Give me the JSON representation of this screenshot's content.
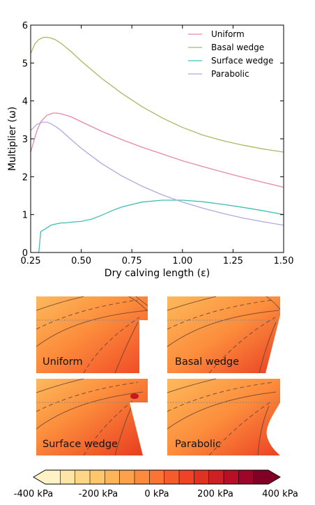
{
  "chart_data": {
    "type": "line",
    "xlabel": "Dry calving length (ε)",
    "ylabel": "Multiplier (ω)",
    "xlim": [
      0.25,
      1.5
    ],
    "ylim": [
      0,
      6
    ],
    "xticks": [
      "0.25",
      "0.50",
      "0.75",
      "1.00",
      "1.25",
      "1.50"
    ],
    "yticks": [
      "0",
      "1",
      "2",
      "3",
      "4",
      "5",
      "6"
    ],
    "legend_position": "top-right",
    "grid": false,
    "series": [
      {
        "name": "Uniform",
        "color": "#e48aa4",
        "x": [
          0.25,
          0.28,
          0.3,
          0.33,
          0.36,
          0.38,
          0.4,
          0.45,
          0.5,
          0.6,
          0.7,
          0.8,
          0.9,
          1.0,
          1.1,
          1.2,
          1.3,
          1.4,
          1.5
        ],
        "y": [
          2.65,
          3.2,
          3.45,
          3.62,
          3.68,
          3.68,
          3.66,
          3.58,
          3.45,
          3.2,
          2.98,
          2.78,
          2.6,
          2.42,
          2.27,
          2.12,
          1.98,
          1.85,
          1.72
        ]
      },
      {
        "name": "Basal wedge",
        "color": "#a6ba64",
        "x": [
          0.25,
          0.27,
          0.29,
          0.31,
          0.33,
          0.35,
          0.37,
          0.4,
          0.45,
          0.5,
          0.6,
          0.7,
          0.8,
          0.9,
          1.0,
          1.1,
          1.2,
          1.3,
          1.4,
          1.5
        ],
        "y": [
          5.25,
          5.5,
          5.62,
          5.67,
          5.68,
          5.66,
          5.62,
          5.52,
          5.3,
          5.05,
          4.6,
          4.2,
          3.85,
          3.55,
          3.3,
          3.1,
          2.95,
          2.83,
          2.73,
          2.65
        ]
      },
      {
        "name": "Surface wedge",
        "color": "#3dbfb1",
        "x": [
          0.29,
          0.3,
          0.33,
          0.35,
          0.38,
          0.4,
          0.42,
          0.45,
          0.5,
          0.55,
          0.6,
          0.65,
          0.7,
          0.8,
          0.9,
          1.0,
          1.1,
          1.2,
          1.3,
          1.4,
          1.5
        ],
        "y": [
          0.0,
          0.55,
          0.65,
          0.72,
          0.76,
          0.78,
          0.78,
          0.8,
          0.82,
          0.88,
          0.98,
          1.1,
          1.2,
          1.33,
          1.38,
          1.38,
          1.34,
          1.27,
          1.19,
          1.1,
          1.0
        ]
      },
      {
        "name": "Parabolic",
        "color": "#b1a8e0",
        "x": [
          0.25,
          0.28,
          0.31,
          0.33,
          0.35,
          0.38,
          0.4,
          0.45,
          0.5,
          0.6,
          0.7,
          0.8,
          0.9,
          1.0,
          1.1,
          1.2,
          1.3,
          1.4,
          1.5
        ],
        "y": [
          3.22,
          3.38,
          3.44,
          3.44,
          3.4,
          3.3,
          3.22,
          2.98,
          2.75,
          2.35,
          2.02,
          1.75,
          1.52,
          1.33,
          1.17,
          1.03,
          0.91,
          0.81,
          0.72
        ]
      }
    ]
  },
  "panels": [
    {
      "label": "Uniform",
      "shape": "uniform"
    },
    {
      "label": "Basal wedge",
      "shape": "basal"
    },
    {
      "label": "Surface wedge",
      "shape": "surface"
    },
    {
      "label": "Parabolic",
      "shape": "parabolic"
    }
  ],
  "colorbar": {
    "colors": [
      "#fff2c4",
      "#ffe5a5",
      "#ffd685",
      "#fec76b",
      "#feb55a",
      "#fda24b",
      "#fc8c3c",
      "#fb7434",
      "#f65b2c",
      "#ee4425",
      "#e03223",
      "#cc2024",
      "#b70f26",
      "#9c0628",
      "#800026"
    ],
    "tick_labels": [
      "-400 kPa",
      "-200 kPa",
      "0 kPa",
      "200 kPa",
      "400 kPa"
    ]
  }
}
